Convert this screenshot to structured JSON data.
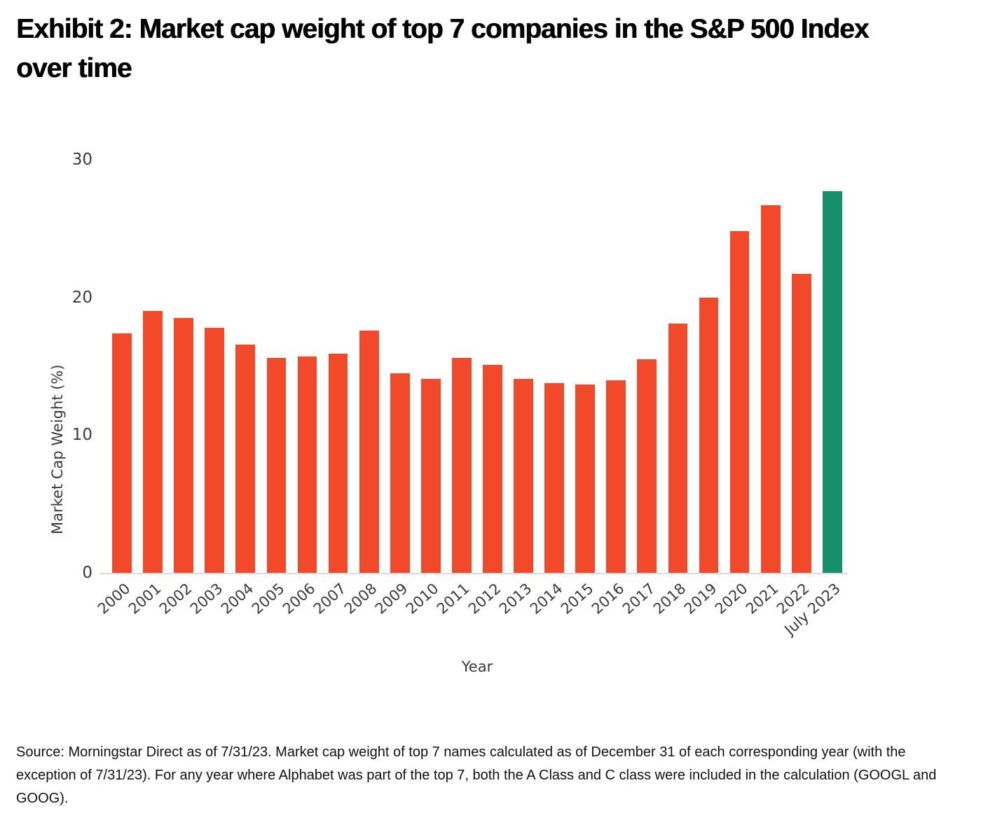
{
  "title_lines": [
    "Exhibit 2: Market cap weight of top 7 companies in the S&P 500 Index",
    "over time"
  ],
  "chart_data": {
    "type": "bar",
    "title": "Exhibit 2: Market cap weight of top 7 companies in the S&P 500 Index over time",
    "categories": [
      "2000",
      "2001",
      "2002",
      "2003",
      "2004",
      "2005",
      "2006",
      "2007",
      "2008",
      "2009",
      "2010",
      "2011",
      "2012",
      "2013",
      "2014",
      "2015",
      "2016",
      "2017",
      "2018",
      "2019",
      "2020",
      "2021",
      "2022",
      "July 2023"
    ],
    "values": [
      17.4,
      19.0,
      18.5,
      17.8,
      16.6,
      15.6,
      15.7,
      15.9,
      17.6,
      14.5,
      14.1,
      15.6,
      15.1,
      14.1,
      13.8,
      13.7,
      14.0,
      15.5,
      18.1,
      20.0,
      24.8,
      26.7,
      21.7,
      27.7
    ],
    "xlabel": "Year",
    "ylabel": "Market Cap Weight (%)",
    "ylim": [
      0,
      30
    ],
    "yticks": [
      0,
      10,
      20,
      30
    ],
    "grid": false,
    "legend": "none",
    "highlight_category": "July 2023",
    "colors": {
      "bar_default": "#F2492B",
      "bar_highlight": "#15906A",
      "axis_line": "#DCDCDC"
    }
  },
  "source_lines": [
    "Source: Morningstar Direct as of 7/31/23. Market cap weight of top 7 names calculated as of December 31 of each corresponding year (with the",
    "exception of 7/31/23). For any year where Alphabet was part of the top 7, both the A Class and C class were included in the calculation (GOOGL and",
    "GOOG)."
  ]
}
